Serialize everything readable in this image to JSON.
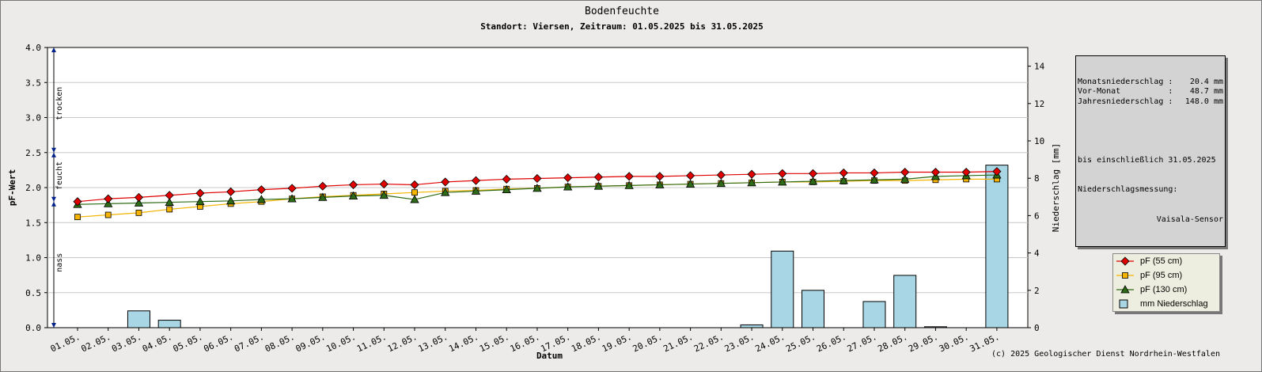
{
  "title": "Bodenfeuchte",
  "subtitle": "Standort: Viersen, Zeitraum: 01.05.2025 bis 31.05.2025",
  "credit": "(c) 2025 Geologischer Dienst Nordrhein-Westfalen",
  "info": {
    "rows": [
      {
        "label": "Monatsniederschlag :",
        "value": "20.4 mm"
      },
      {
        "label": "Vor-Monat          :",
        "value": "48.7 mm"
      },
      {
        "label": "Jahresniederschlag :",
        "value": "148.0 mm"
      }
    ],
    "note1": "bis einschließlich 31.05.2025",
    "note2": "Niederschlagsmessung:",
    "note3": "Vaisala-Sensor"
  },
  "zones": {
    "dry": "trocken",
    "moist": "feucht",
    "wet": "nass"
  },
  "colors": {
    "red": "#e00000",
    "orange": "#f4b400",
    "green": "#2e6b16",
    "bar": "#a8d6e5"
  },
  "chart_data": {
    "type": "line",
    "xlabel": "Datum",
    "ylabel": "pF-Wert",
    "y2label": "Niederschlag [mm]",
    "ylim": [
      0,
      4
    ],
    "y2lim": [
      0,
      15
    ],
    "yticks": [
      "0.0",
      "0.5",
      "1.0",
      "1.5",
      "2.0",
      "2.5",
      "3.0",
      "3.5",
      "4.0"
    ],
    "y2ticks": [
      "0",
      "2",
      "4",
      "6",
      "8",
      "10",
      "12",
      "14"
    ],
    "categories": [
      "01.05.",
      "02.05.",
      "03.05.",
      "04.05.",
      "05.05.",
      "06.05.",
      "07.05.",
      "08.05.",
      "09.05.",
      "10.05.",
      "11.05.",
      "12.05.",
      "13.05.",
      "14.05.",
      "15.05.",
      "16.05.",
      "17.05.",
      "18.05.",
      "19.05.",
      "20.05.",
      "21.05.",
      "22.05.",
      "23.05.",
      "24.05.",
      "25.05.",
      "26.05.",
      "27.05.",
      "28.05.",
      "29.05.",
      "30.05.",
      "31.05."
    ],
    "series": [
      {
        "name": "pF (55 cm)",
        "color": "#e00000",
        "marker": "diamond",
        "values": [
          1.8,
          1.84,
          1.86,
          1.89,
          1.92,
          1.94,
          1.97,
          1.99,
          2.02,
          2.04,
          2.05,
          2.04,
          2.08,
          2.1,
          2.12,
          2.13,
          2.14,
          2.15,
          2.16,
          2.16,
          2.17,
          2.18,
          2.19,
          2.2,
          2.2,
          2.21,
          2.21,
          2.22,
          2.22,
          2.22,
          2.23
        ]
      },
      {
        "name": "pF (95 cm)",
        "color": "#f4b400",
        "marker": "square",
        "values": [
          1.58,
          1.61,
          1.64,
          1.69,
          1.73,
          1.77,
          1.8,
          1.84,
          1.87,
          1.89,
          1.91,
          1.93,
          1.95,
          1.96,
          1.98,
          1.99,
          2.01,
          2.02,
          2.03,
          2.04,
          2.05,
          2.06,
          2.07,
          2.08,
          2.08,
          2.09,
          2.1,
          2.1,
          2.11,
          2.12,
          2.12
        ]
      },
      {
        "name": "pF (130 cm)",
        "color": "#2e6b16",
        "marker": "triangle",
        "values": [
          1.76,
          1.77,
          1.78,
          1.79,
          1.8,
          1.81,
          1.83,
          1.84,
          1.86,
          1.88,
          1.89,
          1.83,
          1.93,
          1.95,
          1.97,
          1.99,
          2.01,
          2.02,
          2.03,
          2.04,
          2.05,
          2.06,
          2.07,
          2.08,
          2.09,
          2.1,
          2.11,
          2.12,
          2.16,
          2.17,
          2.18
        ]
      }
    ],
    "bars": {
      "name": "mm  Niederschlag",
      "values": [
        0,
        0,
        0.9,
        0.4,
        0,
        0,
        0,
        0,
        0,
        0,
        0,
        0,
        0,
        0,
        0,
        0,
        0,
        0,
        0,
        0,
        0,
        0,
        0.15,
        4.1,
        2.0,
        0,
        1.4,
        2.8,
        0.05,
        0,
        8.7
      ]
    },
    "legend_position": "bottom-right",
    "grid": true
  }
}
